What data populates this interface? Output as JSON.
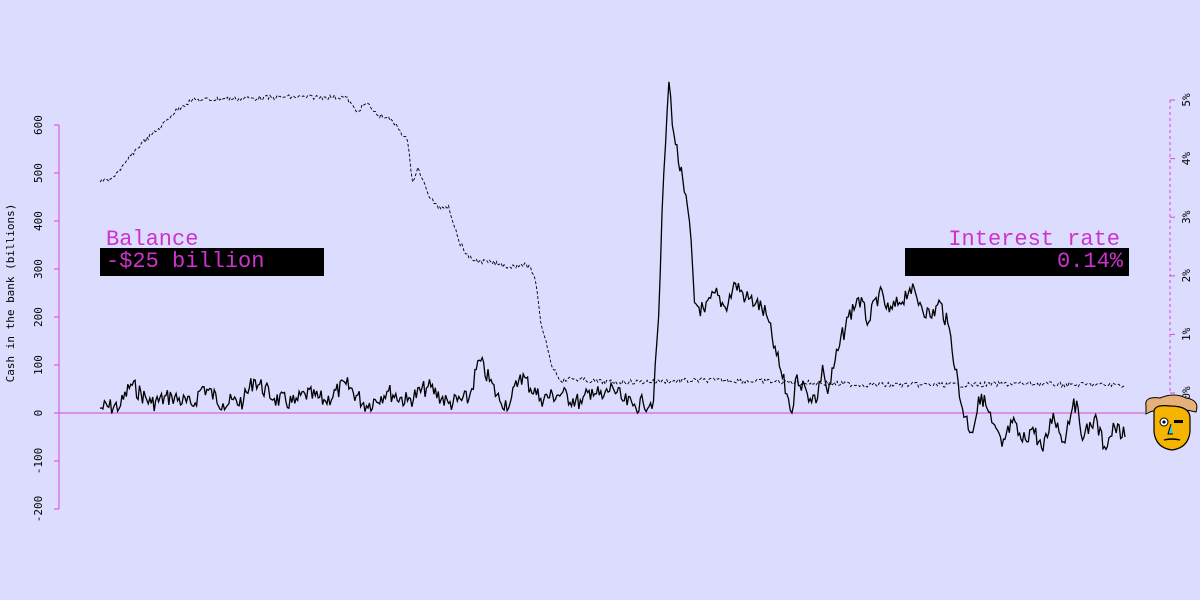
{
  "colors": {
    "background": "#dcdcff",
    "axis": "#dd44dd",
    "balance_line": "#000000",
    "rate_line": "#000000",
    "label_text": "#cc33cc",
    "label_box": "#000000"
  },
  "panels": {
    "balance": {
      "title": "Balance",
      "value": "-$25 billion"
    },
    "interest": {
      "title": "Interest rate",
      "value": "0.14%"
    }
  },
  "icons": {
    "mascot": "cartoon-face-icon"
  },
  "chart_data": {
    "type": "line",
    "title": "",
    "ylabel": "Cash in the bank (billions)",
    "y2label": "",
    "ylim": [
      -200,
      600
    ],
    "y2lim": [
      0,
      5
    ],
    "yticks": [
      "-200",
      "-100",
      "0",
      "100",
      "200",
      "300",
      "400",
      "500",
      "600"
    ],
    "y2ticks": [
      "0%",
      "1%",
      "2%",
      "3%",
      "4%",
      "5%"
    ],
    "x_range": [
      0,
      100
    ],
    "zero_line": true,
    "series": [
      {
        "key": "balance",
        "axis": "left",
        "style": "solid",
        "points": [
          [
            0,
            10
          ],
          [
            2,
            15
          ],
          [
            3,
            60
          ],
          [
            5,
            20
          ],
          [
            7,
            35
          ],
          [
            9,
            15
          ],
          [
            10,
            55
          ],
          [
            12,
            20
          ],
          [
            14,
            25
          ],
          [
            15,
            70
          ],
          [
            17,
            30
          ],
          [
            19,
            20
          ],
          [
            20,
            40
          ],
          [
            22,
            25
          ],
          [
            24,
            60
          ],
          [
            26,
            15
          ],
          [
            28,
            45
          ],
          [
            30,
            25
          ],
          [
            32,
            55
          ],
          [
            34,
            20
          ],
          [
            36,
            30
          ],
          [
            37,
            110
          ],
          [
            39,
            25
          ],
          [
            40,
            20
          ],
          [
            41,
            80
          ],
          [
            43,
            30
          ],
          [
            45,
            40
          ],
          [
            47,
            20
          ],
          [
            48,
            50
          ],
          [
            49,
            30
          ],
          [
            50,
            55
          ],
          [
            51,
            25
          ],
          [
            52,
            15
          ],
          [
            53,
            20
          ],
          [
            54,
            25
          ],
          [
            54.5,
            200
          ],
          [
            55,
            500
          ],
          [
            55.5,
            690
          ],
          [
            56,
            580
          ],
          [
            57,
            460
          ],
          [
            57.5,
            400
          ],
          [
            58,
            230
          ],
          [
            59,
            210
          ],
          [
            60,
            250
          ],
          [
            61,
            220
          ],
          [
            62,
            270
          ],
          [
            63,
            240
          ],
          [
            64,
            230
          ],
          [
            65,
            205
          ],
          [
            66,
            120
          ],
          [
            67,
            40
          ],
          [
            67.5,
            0
          ],
          [
            68,
            80
          ],
          [
            69,
            40
          ],
          [
            70,
            30
          ],
          [
            70.5,
            100
          ],
          [
            71,
            40
          ],
          [
            72,
            130
          ],
          [
            73,
            200
          ],
          [
            74,
            240
          ],
          [
            75,
            190
          ],
          [
            76,
            250
          ],
          [
            77,
            210
          ],
          [
            78,
            230
          ],
          [
            79,
            260
          ],
          [
            80,
            230
          ],
          [
            81,
            200
          ],
          [
            82,
            230
          ],
          [
            83,
            160
          ],
          [
            84,
            20
          ],
          [
            85,
            -40
          ],
          [
            86,
            40
          ],
          [
            87,
            -20
          ],
          [
            88,
            -70
          ],
          [
            89,
            -20
          ],
          [
            90,
            -60
          ],
          [
            91,
            -30
          ],
          [
            92,
            -80
          ],
          [
            93,
            0
          ],
          [
            94,
            -60
          ],
          [
            95,
            30
          ],
          [
            96,
            -50
          ],
          [
            97,
            -10
          ],
          [
            98,
            -70
          ],
          [
            99,
            -30
          ],
          [
            100,
            -50
          ]
        ]
      },
      {
        "key": "interest_rate",
        "axis": "right",
        "style": "dashed",
        "points": [
          [
            0,
            3.6
          ],
          [
            1,
            3.65
          ],
          [
            2,
            3.8
          ],
          [
            3,
            4.05
          ],
          [
            4,
            4.25
          ],
          [
            5,
            4.4
          ],
          [
            6,
            4.55
          ],
          [
            7,
            4.75
          ],
          [
            8,
            4.9
          ],
          [
            9,
            5.0
          ],
          [
            10,
            5.0
          ],
          [
            12,
            5.02
          ],
          [
            15,
            5.03
          ],
          [
            18,
            5.05
          ],
          [
            20,
            5.05
          ],
          [
            22,
            5.05
          ],
          [
            24,
            5.05
          ],
          [
            25,
            4.8
          ],
          [
            26,
            4.95
          ],
          [
            27,
            4.75
          ],
          [
            28,
            4.7
          ],
          [
            29,
            4.55
          ],
          [
            30,
            4.3
          ],
          [
            30.5,
            3.6
          ],
          [
            31,
            3.85
          ],
          [
            32,
            3.4
          ],
          [
            33,
            3.15
          ],
          [
            34,
            3.2
          ],
          [
            35,
            2.6
          ],
          [
            36,
            2.3
          ],
          [
            37,
            2.25
          ],
          [
            39,
            2.2
          ],
          [
            40,
            2.15
          ],
          [
            41,
            2.2
          ],
          [
            42,
            2.15
          ],
          [
            42.5,
            1.9
          ],
          [
            43,
            1.2
          ],
          [
            43.5,
            0.9
          ],
          [
            44,
            0.5
          ],
          [
            45,
            0.2
          ],
          [
            46,
            0.25
          ],
          [
            48,
            0.2
          ],
          [
            50,
            0.18
          ],
          [
            55,
            0.2
          ],
          [
            60,
            0.22
          ],
          [
            65,
            0.2
          ],
          [
            70,
            0.17
          ],
          [
            75,
            0.14
          ],
          [
            80,
            0.14
          ],
          [
            82,
            0.14
          ],
          [
            85,
            0.14
          ],
          [
            90,
            0.16
          ],
          [
            95,
            0.14
          ],
          [
            100,
            0.14
          ]
        ]
      }
    ]
  }
}
